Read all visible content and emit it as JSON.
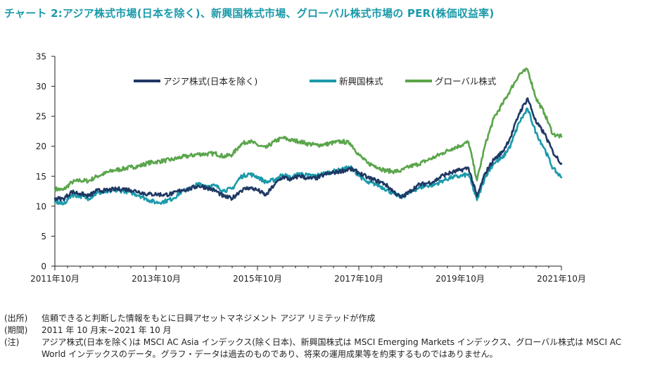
{
  "title": "チャート 2:アジア株式市場(日本を除く)、新興国株式市場、グローバル株式市場の PER(株価収益率)",
  "colors": {
    "title": "#1b9aaa",
    "axis": "#231f20"
  },
  "notes": [
    {
      "tag": "(出所)",
      "text": "信頼できると判断した情報をもとに日興アセットマネジメント アジア リミテッドが作成"
    },
    {
      "tag": "(期間)",
      "text": "2011 年 10 月末~2021 年 10 月"
    },
    {
      "tag": "(注)",
      "text": "アジア株式(日本を除く)は MSCI AC Asia インデックス(除く日本)、新興国株式は MSCI Emerging Markets インデックス、グローバル株式は MSCI AC World インデックスのデータ。グラフ・データは過去のものであり、将来の運用成果等を約束するものではありません。"
    }
  ],
  "chart_data": {
    "type": "line",
    "title": "",
    "xlabel": "",
    "ylabel": "",
    "xlim": [
      2011.75,
      2021.75
    ],
    "ylim": [
      0,
      35
    ],
    "yticks": [
      0,
      5,
      10,
      15,
      20,
      25,
      30,
      35
    ],
    "xticks": [
      {
        "x": 2011.75,
        "label": "2011年10月"
      },
      {
        "x": 2013.75,
        "label": "2013年10月"
      },
      {
        "x": 2015.75,
        "label": "2015年10月"
      },
      {
        "x": 2017.75,
        "label": "2017年10月"
      },
      {
        "x": 2019.75,
        "label": "2019年10月"
      },
      {
        "x": 2021.75,
        "label": "2021年10月"
      }
    ],
    "grid": false,
    "legend": "top-center",
    "x": [
      2011.75,
      2011.917,
      2012.083,
      2012.25,
      2012.417,
      2012.583,
      2012.75,
      2012.917,
      2013.083,
      2013.25,
      2013.417,
      2013.583,
      2013.75,
      2013.917,
      2014.083,
      2014.25,
      2014.417,
      2014.583,
      2014.75,
      2014.917,
      2015.083,
      2015.25,
      2015.417,
      2015.583,
      2015.75,
      2015.917,
      2016.083,
      2016.25,
      2016.417,
      2016.583,
      2016.75,
      2016.917,
      2017.083,
      2017.25,
      2017.417,
      2017.583,
      2017.75,
      2017.917,
      2018.083,
      2018.25,
      2018.417,
      2018.583,
      2018.75,
      2018.917,
      2019.083,
      2019.25,
      2019.417,
      2019.583,
      2019.75,
      2019.917,
      2020.083,
      2020.25,
      2020.417,
      2020.583,
      2020.75,
      2020.917,
      2021.083,
      2021.25,
      2021.417,
      2021.583,
      2021.75
    ],
    "series": [
      {
        "name": "アジア株式(日本を除く)",
        "color": "#1f3864",
        "values": [
          11.3,
          11.2,
          12.4,
          12.1,
          11.7,
          12.6,
          12.6,
          12.8,
          12.9,
          12.7,
          12.4,
          12.0,
          12.0,
          11.9,
          12.1,
          12.7,
          12.9,
          13.4,
          13.1,
          12.6,
          11.6,
          11.3,
          12.6,
          13.1,
          12.7,
          11.8,
          13.6,
          14.9,
          14.4,
          15.1,
          14.6,
          14.7,
          15.3,
          15.6,
          15.9,
          16.2,
          15.6,
          14.8,
          14.3,
          13.8,
          12.6,
          11.4,
          12.4,
          13.5,
          13.8,
          14.2,
          15.2,
          15.6,
          16.0,
          16.4,
          11.6,
          15.6,
          17.8,
          19.0,
          21.6,
          25.5,
          28.0,
          24.0,
          22.1,
          19.0,
          17.1
        ]
      },
      {
        "name": "新興国株式",
        "color": "#1b9aaa",
        "values": [
          10.8,
          10.3,
          11.9,
          11.7,
          11.3,
          12.2,
          12.3,
          12.6,
          12.6,
          12.3,
          11.8,
          11.1,
          10.6,
          10.8,
          11.3,
          12.4,
          12.9,
          13.7,
          13.4,
          13.4,
          12.6,
          12.9,
          14.9,
          15.4,
          14.9,
          14.0,
          14.4,
          15.3,
          14.7,
          15.5,
          15.1,
          15.1,
          15.5,
          15.8,
          16.1,
          16.5,
          15.2,
          13.9,
          13.7,
          13.0,
          12.2,
          11.5,
          12.2,
          13.0,
          13.4,
          13.6,
          14.3,
          14.8,
          15.0,
          15.3,
          11.0,
          15.0,
          17.2,
          18.0,
          20.2,
          24.0,
          26.2,
          22.2,
          19.6,
          16.3,
          14.8
        ]
      },
      {
        "name": "グローバル株式",
        "color": "#5aa54b",
        "values": [
          12.9,
          12.7,
          14.0,
          14.3,
          14.2,
          15.0,
          15.5,
          16.0,
          16.2,
          16.5,
          16.7,
          17.2,
          17.4,
          17.6,
          17.8,
          18.2,
          18.4,
          18.7,
          18.7,
          18.8,
          18.3,
          18.6,
          20.3,
          20.9,
          20.2,
          19.7,
          20.8,
          21.4,
          21.0,
          20.8,
          20.4,
          20.2,
          20.3,
          20.6,
          20.8,
          20.5,
          18.6,
          17.2,
          16.7,
          16.0,
          15.8,
          15.9,
          16.6,
          17.0,
          17.6,
          18.2,
          18.9,
          19.6,
          20.1,
          20.7,
          14.3,
          20.4,
          24.7,
          27.0,
          29.5,
          32.0,
          32.8,
          28.0,
          25.5,
          22.0,
          21.6
        ]
      }
    ]
  }
}
